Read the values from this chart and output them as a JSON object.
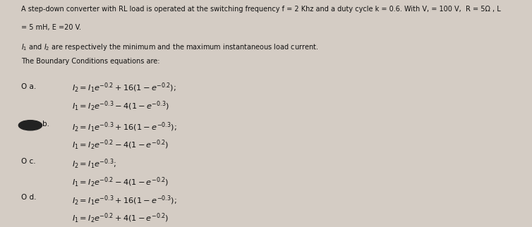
{
  "bg_color": "#d4ccc4",
  "text_color": "#111111",
  "header_line1": "A step-down converter with RL load is operated at the switching frequency f = 2 Khz and a duty cycle k = 0.6. With V, = 100 V,  R = 5Ω , L",
  "header_line2": "= 5 mH, E =20 V.",
  "line2": "I1 and I2 are respectively the minimum and the maximum instantaneous load current.",
  "line3": "The Boundary Conditions equations are:",
  "opt_a_label": "O a.",
  "opt_a_eq1": "$I_2 = I_1e^{-0.2} + 16(1 - e^{-0.2})$;",
  "opt_a_eq2": "$I_1 = I_2e^{-0.3} - 4(1 - e^{-0.3})$",
  "opt_b_label": "b.",
  "opt_b_eq1": "$I_2 = I_1e^{-0.3} + 16(1 - e^{-0.3})$;",
  "opt_b_eq2": "$I_1 = I_2e^{-0.2} - 4(1 - e^{-0.2})$",
  "opt_c_label": "O c.",
  "opt_c_eq1": "$I_2 = I_1e^{-0.3}$;",
  "opt_c_eq2": "$I_1 = I_2e^{-0.2} - 4(1 - e^{-0.2})$",
  "opt_d_label": "O d.",
  "opt_d_eq1": "$I_2 = I_1e^{-0.3} + 16(1 - e^{-0.3})$;",
  "opt_d_eq2": "$I_1 = I_2e^{-0.2} + 4(1 - e^{-0.2})$",
  "fs_header": 7.0,
  "fs_body": 7.5,
  "fs_eq": 8.2,
  "circle_b_color": "#222222"
}
